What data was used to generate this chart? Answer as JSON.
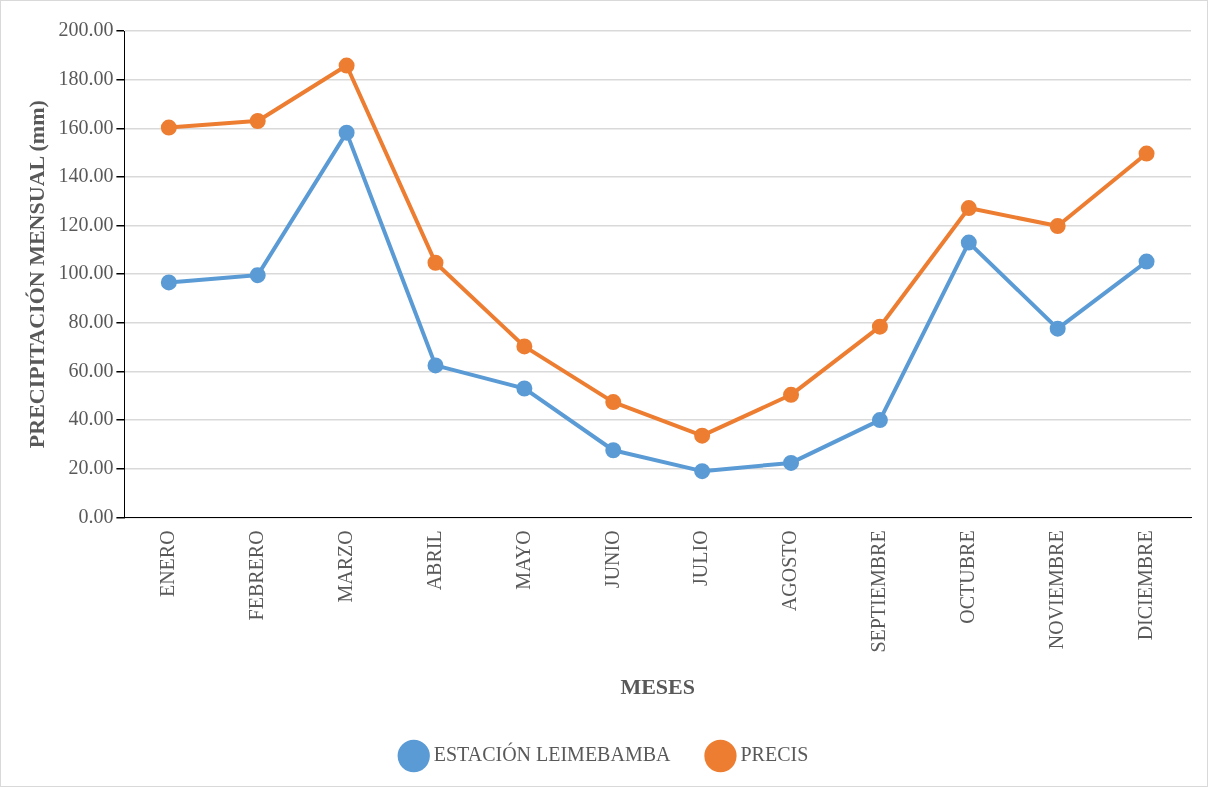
{
  "chart_data": {
    "type": "line",
    "xlabel": "MESES",
    "ylabel": "PRECIPITACIÓN MENSUAL (mm)",
    "categories": [
      "ENERO",
      "FEBRERO",
      "MARZO",
      "ABRIL",
      "MAYO",
      "JUNIO",
      "JULIO",
      "AGOSTO",
      "SEPTIEMBRE",
      "OCTUBRE",
      "NOVIEMBRE",
      "DICIEMBRE"
    ],
    "series": [
      {
        "name": "ESTACIÓN LEIMEBAMBA",
        "color": "#5b9bd5",
        "values": [
          96.6,
          99.6,
          158.2,
          62.5,
          53,
          27.6,
          19,
          22.4,
          40,
          113,
          77.6,
          105.2
        ]
      },
      {
        "name": "PRECIS",
        "color": "#ed7d31",
        "values": [
          160.3,
          163,
          185.8,
          104.7,
          70.3,
          47.4,
          33.6,
          50.4,
          78.4,
          127.2,
          119.8,
          149.6
        ]
      }
    ],
    "ylim": [
      0,
      200
    ],
    "yticks": [
      {
        "value": 0,
        "label": "0.00"
      },
      {
        "value": 20,
        "label": "20.00"
      },
      {
        "value": 40,
        "label": "40.00"
      },
      {
        "value": 60,
        "label": "60.00"
      },
      {
        "value": 80,
        "label": "80.00"
      },
      {
        "value": 100,
        "label": "100.00"
      },
      {
        "value": 120,
        "label": "120.00"
      },
      {
        "value": 140,
        "label": "140.00"
      },
      {
        "value": 160,
        "label": "160.00"
      },
      {
        "value": 180,
        "label": "180.00"
      },
      {
        "value": 200,
        "label": "200.00"
      }
    ],
    "grid": "y",
    "legend": "bottom",
    "marker": "circle",
    "line_style": "solid"
  }
}
